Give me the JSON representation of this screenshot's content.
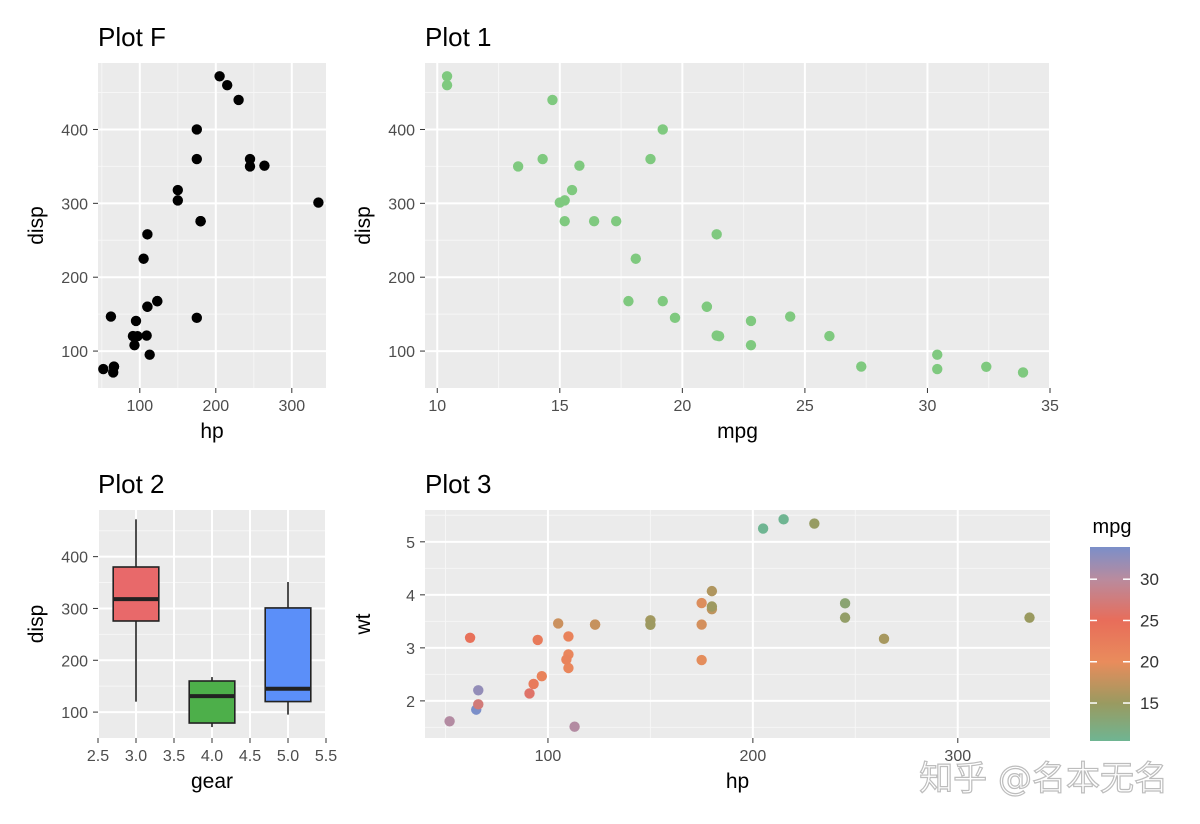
{
  "watermark": "知乎 @名本无名",
  "chart_data": [
    {
      "id": "plotF",
      "type": "scatter",
      "title": "Plot F",
      "xlabel": "hp",
      "ylabel": "disp",
      "xlim": [
        45,
        345
      ],
      "ylim": [
        50,
        490
      ],
      "xticks": [
        100,
        200,
        300
      ],
      "yticks": [
        100,
        200,
        300,
        400
      ],
      "point_color": "#000000",
      "points": [
        [
          110,
          160
        ],
        [
          110,
          160
        ],
        [
          93,
          108
        ],
        [
          110,
          258
        ],
        [
          175,
          360
        ],
        [
          105,
          225
        ],
        [
          245,
          360
        ],
        [
          62,
          146.7
        ],
        [
          95,
          140.8
        ],
        [
          123,
          167.6
        ],
        [
          123,
          167.6
        ],
        [
          180,
          275.8
        ],
        [
          180,
          275.8
        ],
        [
          180,
          275.8
        ],
        [
          205,
          472
        ],
        [
          215,
          460
        ],
        [
          230,
          440
        ],
        [
          66,
          78.7
        ],
        [
          52,
          75.7
        ],
        [
          65,
          71.1
        ],
        [
          97,
          120.1
        ],
        [
          150,
          318
        ],
        [
          150,
          304
        ],
        [
          245,
          350
        ],
        [
          175,
          400
        ],
        [
          66,
          79
        ],
        [
          91,
          120.3
        ],
        [
          113,
          95.1
        ],
        [
          264,
          351
        ],
        [
          175,
          145
        ],
        [
          335,
          301
        ],
        [
          109,
          121
        ]
      ]
    },
    {
      "id": "plot1",
      "type": "scatter",
      "title": "Plot 1",
      "xlabel": "mpg",
      "ylabel": "disp",
      "xlim": [
        9.5,
        35
      ],
      "ylim": [
        50,
        490
      ],
      "xticks": [
        10,
        15,
        20,
        25,
        30,
        35
      ],
      "yticks": [
        100,
        200,
        300,
        400
      ],
      "point_color": "#7fc97f",
      "points": [
        [
          21,
          160
        ],
        [
          21,
          160
        ],
        [
          22.8,
          108
        ],
        [
          21.4,
          258
        ],
        [
          18.7,
          360
        ],
        [
          18.1,
          225
        ],
        [
          14.3,
          360
        ],
        [
          24.4,
          146.7
        ],
        [
          22.8,
          140.8
        ],
        [
          19.2,
          167.6
        ],
        [
          17.8,
          167.6
        ],
        [
          16.4,
          275.8
        ],
        [
          17.3,
          275.8
        ],
        [
          15.2,
          275.8
        ],
        [
          10.4,
          472
        ],
        [
          10.4,
          460
        ],
        [
          14.7,
          440
        ],
        [
          32.4,
          78.7
        ],
        [
          30.4,
          75.7
        ],
        [
          33.9,
          71.1
        ],
        [
          21.5,
          120.1
        ],
        [
          15.5,
          318
        ],
        [
          15.2,
          304
        ],
        [
          13.3,
          350
        ],
        [
          19.2,
          400
        ],
        [
          27.3,
          79
        ],
        [
          26,
          120.3
        ],
        [
          30.4,
          95.1
        ],
        [
          15.8,
          351
        ],
        [
          19.7,
          145
        ],
        [
          15,
          301
        ],
        [
          21.4,
          121
        ]
      ]
    },
    {
      "id": "plot2",
      "type": "box",
      "title": "Plot 2",
      "xlabel": "gear",
      "ylabel": "disp",
      "xlim": [
        2.5,
        5.5
      ],
      "ylim": [
        50,
        490
      ],
      "xticks": [
        2.5,
        3.0,
        3.5,
        4.0,
        4.5,
        5.0,
        5.5
      ],
      "xticklabels": [
        "2.5",
        "3.0",
        "3.5",
        "4.0",
        "4.5",
        "5.0",
        "5.5"
      ],
      "yticks": [
        100,
        200,
        300,
        400
      ],
      "boxes": [
        {
          "x": 3,
          "min": 120.1,
          "q1": 275.8,
          "median": 318,
          "q3": 380,
          "max": 472,
          "color": "#e8696a"
        },
        {
          "x": 4,
          "min": 71.1,
          "q1": 78.9,
          "median": 130.9,
          "q3": 160,
          "max": 167.6,
          "color": "#4daf4a"
        },
        {
          "x": 5,
          "min": 95.1,
          "q1": 120.3,
          "median": 145,
          "q3": 301,
          "max": 351,
          "color": "#5b8ff9"
        }
      ]
    },
    {
      "id": "plot3",
      "type": "scatter",
      "title": "Plot 3",
      "xlabel": "hp",
      "ylabel": "wt",
      "xlim": [
        40,
        345
      ],
      "ylim": [
        1.3,
        5.6
      ],
      "xticks": [
        100,
        200,
        300
      ],
      "yticks": [
        2,
        3,
        4,
        5
      ],
      "color_by": "mpg",
      "color_range": [
        10.4,
        33.9
      ],
      "points": [
        [
          110,
          2.62,
          21
        ],
        [
          110,
          2.875,
          21
        ],
        [
          93,
          2.32,
          22.8
        ],
        [
          110,
          3.215,
          21.4
        ],
        [
          175,
          3.44,
          18.7
        ],
        [
          105,
          3.46,
          18.1
        ],
        [
          245,
          3.57,
          14.3
        ],
        [
          62,
          3.19,
          24.4
        ],
        [
          95,
          3.15,
          22.8
        ],
        [
          123,
          3.44,
          19.2
        ],
        [
          123,
          3.44,
          17.8
        ],
        [
          180,
          4.07,
          16.4
        ],
        [
          180,
          3.73,
          17.3
        ],
        [
          180,
          3.78,
          15.2
        ],
        [
          205,
          5.25,
          10.4
        ],
        [
          215,
          5.424,
          10.4
        ],
        [
          230,
          5.345,
          14.7
        ],
        [
          66,
          2.2,
          32.4
        ],
        [
          52,
          1.615,
          30.4
        ],
        [
          65,
          1.835,
          33.9
        ],
        [
          97,
          2.465,
          21.5
        ],
        [
          150,
          3.52,
          15.5
        ],
        [
          150,
          3.435,
          15.2
        ],
        [
          245,
          3.84,
          13.3
        ],
        [
          175,
          3.845,
          19.2
        ],
        [
          66,
          1.935,
          27.3
        ],
        [
          91,
          2.14,
          26
        ],
        [
          113,
          1.513,
          30.4
        ],
        [
          264,
          3.17,
          15.8
        ],
        [
          175,
          2.77,
          19.7
        ],
        [
          335,
          3.57,
          15
        ],
        [
          109,
          2.78,
          21.4
        ]
      ]
    }
  ],
  "legend": {
    "title": "mpg",
    "ticks": [
      15,
      20,
      25,
      30
    ],
    "stops": [
      {
        "value": 10.4,
        "color": "#6fb592"
      },
      {
        "value": 15,
        "color": "#9a9a60"
      },
      {
        "value": 20,
        "color": "#e98c5c"
      },
      {
        "value": 25,
        "color": "#e86d5a"
      },
      {
        "value": 30,
        "color": "#b98b9e"
      },
      {
        "value": 33.9,
        "color": "#7b8fc9"
      }
    ]
  }
}
